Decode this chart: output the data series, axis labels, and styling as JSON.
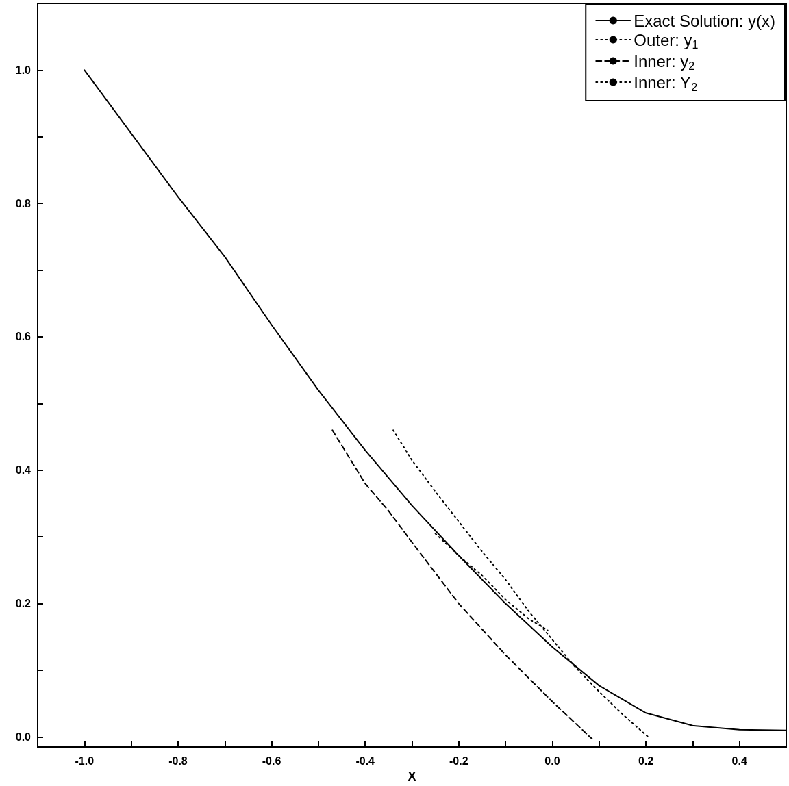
{
  "chart_data": {
    "type": "line",
    "xlabel": "X",
    "xlim": [
      -1.1,
      0.5
    ],
    "ylim": [
      -0.015,
      1.1
    ],
    "xticks": [
      {
        "value": -1.0,
        "label": "-1.0"
      },
      {
        "value": -0.9,
        "label": null
      },
      {
        "value": -0.8,
        "label": "-0.8"
      },
      {
        "value": -0.7,
        "label": null
      },
      {
        "value": -0.6,
        "label": "-0.6"
      },
      {
        "value": -0.5,
        "label": null
      },
      {
        "value": -0.4,
        "label": "-0.4"
      },
      {
        "value": -0.3,
        "label": null
      },
      {
        "value": -0.2,
        "label": "-0.2"
      },
      {
        "value": -0.1,
        "label": null
      },
      {
        "value": 0.0,
        "label": "0.0"
      },
      {
        "value": 0.1,
        "label": null
      },
      {
        "value": 0.2,
        "label": "0.2"
      },
      {
        "value": 0.3,
        "label": null
      },
      {
        "value": 0.4,
        "label": "0.4"
      }
    ],
    "yticks": [
      {
        "value": 0.0,
        "label": "0.0"
      },
      {
        "value": 0.1,
        "label": null
      },
      {
        "value": 0.2,
        "label": "0.2"
      },
      {
        "value": 0.3,
        "label": null
      },
      {
        "value": 0.4,
        "label": "0.4"
      },
      {
        "value": 0.5,
        "label": null
      },
      {
        "value": 0.6,
        "label": "0.6"
      },
      {
        "value": 0.7,
        "label": null
      },
      {
        "value": 0.8,
        "label": "0.8"
      },
      {
        "value": 0.9,
        "label": null
      },
      {
        "value": 1.0,
        "label": "1.0"
      }
    ],
    "grid": false,
    "legend": "top right",
    "marker": "none",
    "series": [
      {
        "name": "Exact Solution: y(x)",
        "color": "#000000",
        "line_style": "solid",
        "x": [
          -1.0,
          -0.9,
          -0.8,
          -0.7,
          -0.6,
          -0.5,
          -0.4,
          -0.3,
          -0.2,
          -0.1,
          0.0,
          0.1,
          0.2,
          0.3,
          0.4,
          0.5
        ],
        "values": [
          1.0,
          0.905,
          0.81,
          0.72,
          0.618,
          0.52,
          0.43,
          0.347,
          0.272,
          0.2,
          0.135,
          0.077,
          0.036,
          0.017,
          0.011,
          0.01
        ]
      },
      {
        "name": "Outer: y$_{1}$",
        "color": "#000000",
        "line_style": "dotted",
        "x": [
          -0.25,
          -0.2,
          -0.15,
          -0.1,
          -0.05,
          -0.01
        ],
        "values": [
          0.305,
          0.272,
          0.242,
          0.206,
          0.177,
          0.16
        ]
      },
      {
        "name": "Inner: y$_{2}$",
        "color": "#000000",
        "line_style": "dashed",
        "x": [
          -0.47,
          -0.4,
          -0.35,
          -0.3,
          -0.2,
          -0.1,
          0.0,
          0.085
        ],
        "values": [
          0.46,
          0.38,
          0.339,
          0.292,
          0.2,
          0.123,
          0.053,
          -0.003
        ]
      },
      {
        "name": "Inner: Y$_{2}$",
        "color": "#000000",
        "line_style": "dotted",
        "x": [
          -0.34,
          -0.3,
          -0.25,
          -0.2,
          -0.15,
          -0.1,
          -0.05,
          0.0,
          0.05,
          0.1,
          0.15,
          0.205
        ],
        "values": [
          0.46,
          0.415,
          0.368,
          0.323,
          0.278,
          0.236,
          0.188,
          0.146,
          0.104,
          0.068,
          0.034,
          0.0
        ]
      }
    ]
  }
}
